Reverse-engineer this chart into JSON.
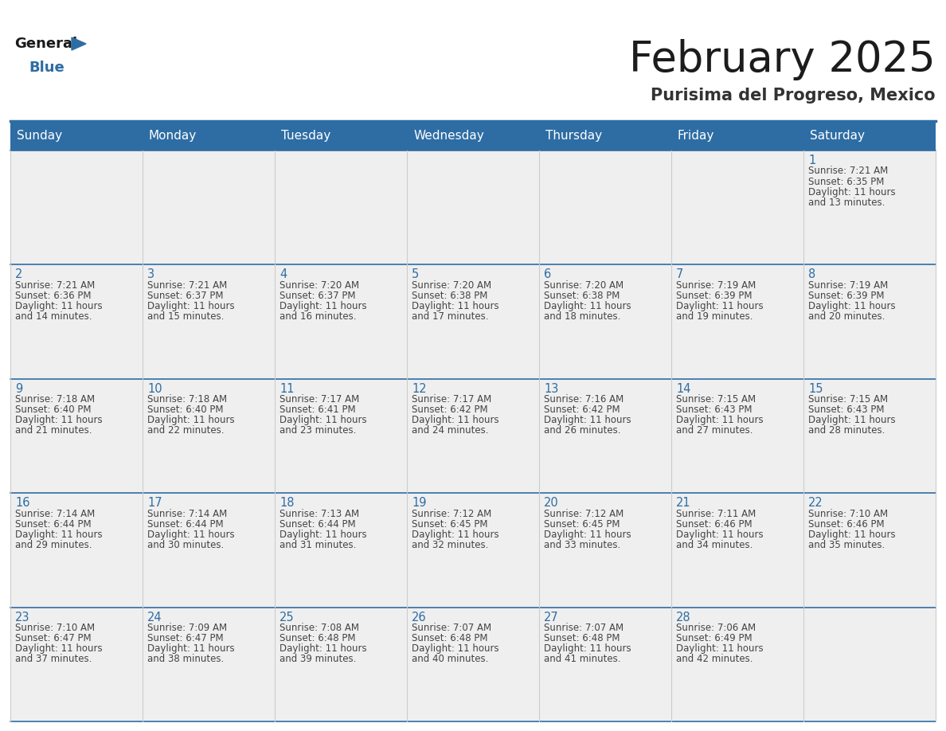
{
  "title": "February 2025",
  "subtitle": "Purisima del Progreso, Mexico",
  "header_bg": "#2E6DA4",
  "header_text": "#FFFFFF",
  "cell_bg_odd": "#EFEFEF",
  "cell_bg_even": "#F8F8F8",
  "border_color": "#2E6DA4",
  "inner_line_color": "#AAAAAA",
  "day_names": [
    "Sunday",
    "Monday",
    "Tuesday",
    "Wednesday",
    "Thursday",
    "Friday",
    "Saturday"
  ],
  "text_color": "#444444",
  "day_num_color": "#2E6DA4",
  "logo_general_color": "#1a1a1a",
  "logo_blue_color": "#2E6DA4",
  "days": [
    {
      "day": 1,
      "col": 6,
      "row": 0,
      "sunrise": "7:21 AM",
      "sunset": "6:35 PM",
      "daylight_h": "11 hours",
      "daylight_m": "and 13 minutes."
    },
    {
      "day": 2,
      "col": 0,
      "row": 1,
      "sunrise": "7:21 AM",
      "sunset": "6:36 PM",
      "daylight_h": "11 hours",
      "daylight_m": "and 14 minutes."
    },
    {
      "day": 3,
      "col": 1,
      "row": 1,
      "sunrise": "7:21 AM",
      "sunset": "6:37 PM",
      "daylight_h": "11 hours",
      "daylight_m": "and 15 minutes."
    },
    {
      "day": 4,
      "col": 2,
      "row": 1,
      "sunrise": "7:20 AM",
      "sunset": "6:37 PM",
      "daylight_h": "11 hours",
      "daylight_m": "and 16 minutes."
    },
    {
      "day": 5,
      "col": 3,
      "row": 1,
      "sunrise": "7:20 AM",
      "sunset": "6:38 PM",
      "daylight_h": "11 hours",
      "daylight_m": "and 17 minutes."
    },
    {
      "day": 6,
      "col": 4,
      "row": 1,
      "sunrise": "7:20 AM",
      "sunset": "6:38 PM",
      "daylight_h": "11 hours",
      "daylight_m": "and 18 minutes."
    },
    {
      "day": 7,
      "col": 5,
      "row": 1,
      "sunrise": "7:19 AM",
      "sunset": "6:39 PM",
      "daylight_h": "11 hours",
      "daylight_m": "and 19 minutes."
    },
    {
      "day": 8,
      "col": 6,
      "row": 1,
      "sunrise": "7:19 AM",
      "sunset": "6:39 PM",
      "daylight_h": "11 hours",
      "daylight_m": "and 20 minutes."
    },
    {
      "day": 9,
      "col": 0,
      "row": 2,
      "sunrise": "7:18 AM",
      "sunset": "6:40 PM",
      "daylight_h": "11 hours",
      "daylight_m": "and 21 minutes."
    },
    {
      "day": 10,
      "col": 1,
      "row": 2,
      "sunrise": "7:18 AM",
      "sunset": "6:40 PM",
      "daylight_h": "11 hours",
      "daylight_m": "and 22 minutes."
    },
    {
      "day": 11,
      "col": 2,
      "row": 2,
      "sunrise": "7:17 AM",
      "sunset": "6:41 PM",
      "daylight_h": "11 hours",
      "daylight_m": "and 23 minutes."
    },
    {
      "day": 12,
      "col": 3,
      "row": 2,
      "sunrise": "7:17 AM",
      "sunset": "6:42 PM",
      "daylight_h": "11 hours",
      "daylight_m": "and 24 minutes."
    },
    {
      "day": 13,
      "col": 4,
      "row": 2,
      "sunrise": "7:16 AM",
      "sunset": "6:42 PM",
      "daylight_h": "11 hours",
      "daylight_m": "and 26 minutes."
    },
    {
      "day": 14,
      "col": 5,
      "row": 2,
      "sunrise": "7:15 AM",
      "sunset": "6:43 PM",
      "daylight_h": "11 hours",
      "daylight_m": "and 27 minutes."
    },
    {
      "day": 15,
      "col": 6,
      "row": 2,
      "sunrise": "7:15 AM",
      "sunset": "6:43 PM",
      "daylight_h": "11 hours",
      "daylight_m": "and 28 minutes."
    },
    {
      "day": 16,
      "col": 0,
      "row": 3,
      "sunrise": "7:14 AM",
      "sunset": "6:44 PM",
      "daylight_h": "11 hours",
      "daylight_m": "and 29 minutes."
    },
    {
      "day": 17,
      "col": 1,
      "row": 3,
      "sunrise": "7:14 AM",
      "sunset": "6:44 PM",
      "daylight_h": "11 hours",
      "daylight_m": "and 30 minutes."
    },
    {
      "day": 18,
      "col": 2,
      "row": 3,
      "sunrise": "7:13 AM",
      "sunset": "6:44 PM",
      "daylight_h": "11 hours",
      "daylight_m": "and 31 minutes."
    },
    {
      "day": 19,
      "col": 3,
      "row": 3,
      "sunrise": "7:12 AM",
      "sunset": "6:45 PM",
      "daylight_h": "11 hours",
      "daylight_m": "and 32 minutes."
    },
    {
      "day": 20,
      "col": 4,
      "row": 3,
      "sunrise": "7:12 AM",
      "sunset": "6:45 PM",
      "daylight_h": "11 hours",
      "daylight_m": "and 33 minutes."
    },
    {
      "day": 21,
      "col": 5,
      "row": 3,
      "sunrise": "7:11 AM",
      "sunset": "6:46 PM",
      "daylight_h": "11 hours",
      "daylight_m": "and 34 minutes."
    },
    {
      "day": 22,
      "col": 6,
      "row": 3,
      "sunrise": "7:10 AM",
      "sunset": "6:46 PM",
      "daylight_h": "11 hours",
      "daylight_m": "and 35 minutes."
    },
    {
      "day": 23,
      "col": 0,
      "row": 4,
      "sunrise": "7:10 AM",
      "sunset": "6:47 PM",
      "daylight_h": "11 hours",
      "daylight_m": "and 37 minutes."
    },
    {
      "day": 24,
      "col": 1,
      "row": 4,
      "sunrise": "7:09 AM",
      "sunset": "6:47 PM",
      "daylight_h": "11 hours",
      "daylight_m": "and 38 minutes."
    },
    {
      "day": 25,
      "col": 2,
      "row": 4,
      "sunrise": "7:08 AM",
      "sunset": "6:48 PM",
      "daylight_h": "11 hours",
      "daylight_m": "and 39 minutes."
    },
    {
      "day": 26,
      "col": 3,
      "row": 4,
      "sunrise": "7:07 AM",
      "sunset": "6:48 PM",
      "daylight_h": "11 hours",
      "daylight_m": "and 40 minutes."
    },
    {
      "day": 27,
      "col": 4,
      "row": 4,
      "sunrise": "7:07 AM",
      "sunset": "6:48 PM",
      "daylight_h": "11 hours",
      "daylight_m": "and 41 minutes."
    },
    {
      "day": 28,
      "col": 5,
      "row": 4,
      "sunrise": "7:06 AM",
      "sunset": "6:49 PM",
      "daylight_h": "11 hours",
      "daylight_m": "and 42 minutes."
    }
  ]
}
